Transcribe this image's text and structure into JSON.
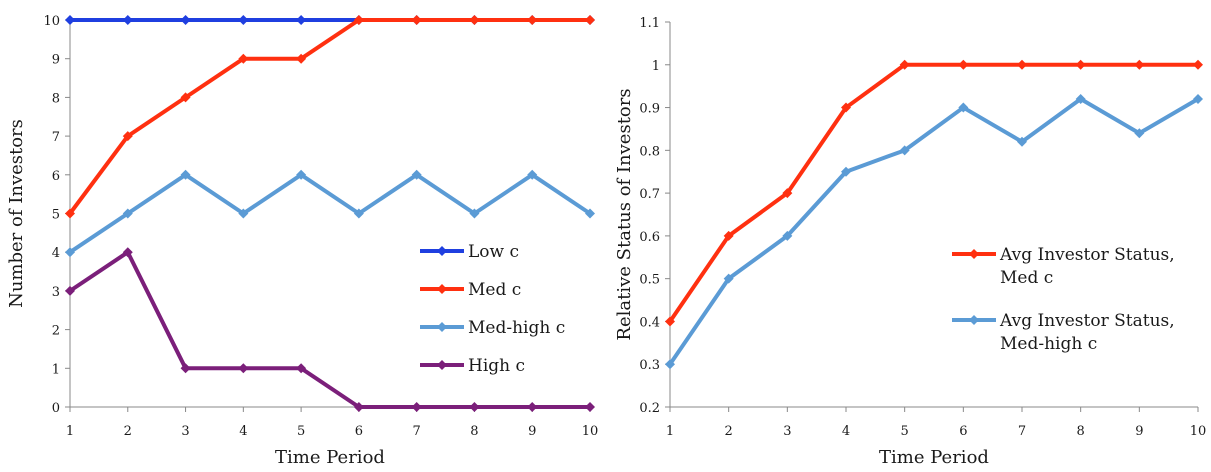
{
  "chart_data": [
    {
      "type": "line",
      "x": [
        1,
        2,
        3,
        4,
        5,
        6,
        7,
        8,
        9,
        10
      ],
      "xtick_labels": [
        "1",
        "2",
        "3",
        "4",
        "5",
        "6",
        "7",
        "8",
        "9",
        "10"
      ],
      "xlabel": "Time Period",
      "ylabel": "Number of Investors",
      "ylim": [
        0,
        10
      ],
      "yticks": [
        0,
        1,
        2,
        3,
        4,
        5,
        6,
        7,
        8,
        9,
        10
      ],
      "ytick_labels": [
        "0",
        "1",
        "2",
        "3",
        "4",
        "5",
        "6",
        "7",
        "8",
        "9",
        "10"
      ],
      "grid": false,
      "legend_position": "bottom-right",
      "series": [
        {
          "name": "Low c",
          "color": "#1f3fe0",
          "values": [
            10,
            10,
            10,
            10,
            10,
            10,
            10,
            10,
            10,
            10
          ]
        },
        {
          "name": "Med c",
          "color": "#ff3010",
          "values": [
            5,
            7,
            8,
            9,
            9,
            10,
            10,
            10,
            10,
            10
          ]
        },
        {
          "name": "Med-high c",
          "color": "#5b9bd5",
          "values": [
            4,
            5,
            6,
            5,
            6,
            5,
            6,
            5,
            6,
            5
          ]
        },
        {
          "name": "High c",
          "color": "#7b1f7a",
          "values": [
            3,
            4,
            1,
            1,
            1,
            0,
            0,
            0,
            0,
            0
          ]
        }
      ]
    },
    {
      "type": "line",
      "x": [
        1,
        2,
        3,
        4,
        5,
        6,
        7,
        8,
        9,
        10
      ],
      "xtick_labels": [
        "1",
        "2",
        "3",
        "4",
        "5",
        "6",
        "7",
        "8",
        "9",
        "10"
      ],
      "xlabel": "Time Period",
      "ylabel": "Relative Status of Investors",
      "ylim": [
        0.2,
        1.1
      ],
      "yticks": [
        0.2,
        0.3,
        0.4,
        0.5,
        0.6,
        0.7,
        0.8,
        0.9,
        1.0,
        1.1
      ],
      "ytick_labels": [
        "0.2",
        "0.3",
        "0.4",
        "0.5",
        "0.6",
        "0.7",
        "0.8",
        "0.9",
        "1",
        "1.1"
      ],
      "grid": false,
      "legend_position": "right",
      "series": [
        {
          "name": "Avg Investor Status, Med c",
          "color": "#ff3010",
          "values": [
            0.4,
            0.6,
            0.7,
            0.9,
            1.0,
            1.0,
            1.0,
            1.0,
            1.0,
            1.0
          ]
        },
        {
          "name": "Avg Investor Status, Med-high c",
          "color": "#5b9bd5",
          "values": [
            0.3,
            0.5,
            0.6,
            0.75,
            0.8,
            0.9,
            0.82,
            0.92,
            0.84,
            0.92
          ]
        }
      ]
    }
  ]
}
